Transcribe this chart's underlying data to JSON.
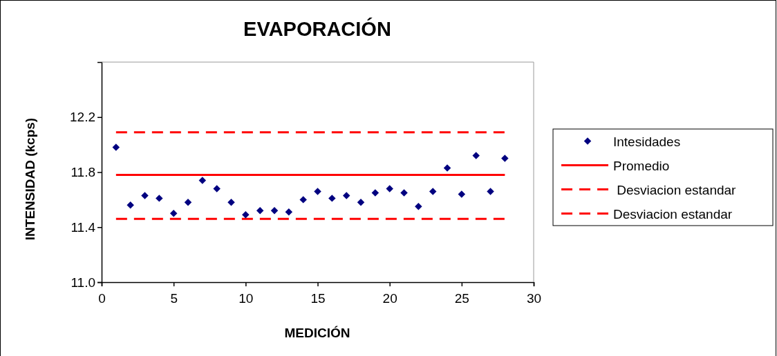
{
  "chart_data": {
    "type": "line",
    "title": "EVAPORACIÓN",
    "xlabel": "MEDICIÓN",
    "ylabel": "INTENSIDAD (kcps)",
    "xlim": [
      0,
      30
    ],
    "xticks": [
      0,
      5,
      10,
      15,
      20,
      25,
      30
    ],
    "ylim": [
      11,
      12.6
    ],
    "yticks": [
      {
        "value": 11,
        "label": "11.0"
      },
      {
        "value": 11.4,
        "label": "11.4"
      },
      {
        "value": 11.8,
        "label": "11.8"
      },
      {
        "value": 12.2,
        "label": "12.2"
      }
    ],
    "grid": false,
    "legend": "right",
    "series": [
      {
        "name": "Intesidades",
        "color": "#000080",
        "type": "scatter",
        "marker": "diamond",
        "x": [
          1,
          2,
          3,
          4,
          5,
          6,
          7,
          8,
          9,
          10,
          11,
          12,
          13,
          14,
          15,
          16,
          17,
          18,
          19,
          20,
          21,
          22,
          23,
          24,
          25,
          26,
          27,
          28
        ],
        "values": [
          11.98,
          11.56,
          11.63,
          11.61,
          11.5,
          11.58,
          11.74,
          11.68,
          11.58,
          11.49,
          11.52,
          11.52,
          11.51,
          11.6,
          11.66,
          11.61,
          11.63,
          11.58,
          11.65,
          11.68,
          11.65,
          11.55,
          11.66,
          11.83,
          11.64,
          11.92,
          11.66,
          11.9
        ]
      },
      {
        "name": "Promedio",
        "color": "#ff0000",
        "marker": "none",
        "line_style": "solid",
        "x": [
          1,
          28
        ],
        "values": [
          11.78,
          11.78
        ]
      },
      {
        "name": " Desviacion estandar",
        "color": "#ff0000",
        "marker": "none",
        "line_style": "dashed",
        "x": [
          1,
          28
        ],
        "values": [
          12.09,
          12.09
        ]
      },
      {
        "name": "Desviacion estandar",
        "color": "#ff0000",
        "marker": "none",
        "line_style": "dashed",
        "x": [
          1,
          28
        ],
        "values": [
          11.46,
          11.46
        ]
      }
    ]
  }
}
